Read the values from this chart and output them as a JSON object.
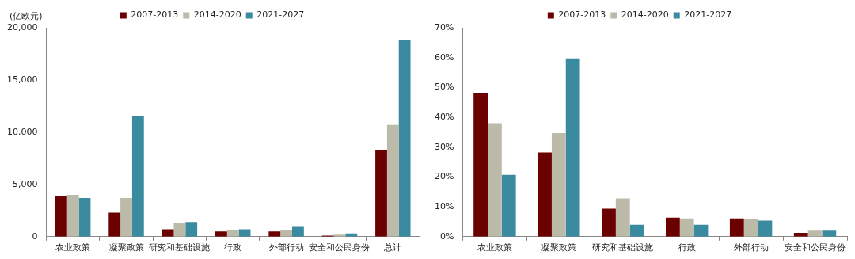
{
  "chart_data": [
    {
      "type": "bar",
      "ylabel": "(亿欧元)",
      "categories": [
        "农业政策",
        "凝聚政策",
        "研究和基础设施",
        "行政",
        "外部行动",
        "安全和公民身份",
        "总计"
      ],
      "series": [
        {
          "name": "2007-2013",
          "color": "#6b0000",
          "values": [
            3900,
            2300,
            700,
            500,
            500,
            100,
            8300
          ]
        },
        {
          "name": "2014-2020",
          "color": "#bcbaa8",
          "values": [
            4000,
            3700,
            1300,
            600,
            600,
            200,
            10700
          ]
        },
        {
          "name": "2021-2027",
          "color": "#3a8aa0",
          "values": [
            3700,
            11500,
            1400,
            700,
            1000,
            300,
            18800
          ]
        }
      ],
      "ylim": [
        0,
        20000
      ],
      "yticks": [
        {
          "value": 0,
          "label": "0"
        },
        {
          "value": 5000,
          "label": "5,000"
        },
        {
          "value": 10000,
          "label": "10,000"
        },
        {
          "value": 15000,
          "label": "15,000"
        },
        {
          "value": 20000,
          "label": "20,000"
        }
      ],
      "grid": false,
      "legend": "top"
    },
    {
      "type": "bar",
      "categories": [
        "农业政策",
        "凝聚政策",
        "研究和基础设施",
        "行政",
        "外部行动",
        "安全和公民身份"
      ],
      "series": [
        {
          "name": "2007-2013",
          "color": "#6b0000",
          "values": [
            48,
            28.2,
            9.4,
            6.4,
            6.1,
            1.3
          ]
        },
        {
          "name": "2014-2020",
          "color": "#bcbaa8",
          "values": [
            38,
            34.7,
            12.8,
            6.1,
            6,
            2
          ]
        },
        {
          "name": "2021-2027",
          "color": "#3a8aa0",
          "values": [
            20.7,
            59.7,
            4,
            4,
            5.4,
            2
          ]
        }
      ],
      "ylim": [
        0,
        70
      ],
      "yticks": [
        {
          "value": 0,
          "label": "0%"
        },
        {
          "value": 10,
          "label": "10%"
        },
        {
          "value": 20,
          "label": "20%"
        },
        {
          "value": 30,
          "label": "30%"
        },
        {
          "value": 40,
          "label": "40%"
        },
        {
          "value": 50,
          "label": "50%"
        },
        {
          "value": 60,
          "label": "60%"
        },
        {
          "value": 70,
          "label": "70%"
        }
      ],
      "grid": false,
      "legend": "top"
    }
  ]
}
